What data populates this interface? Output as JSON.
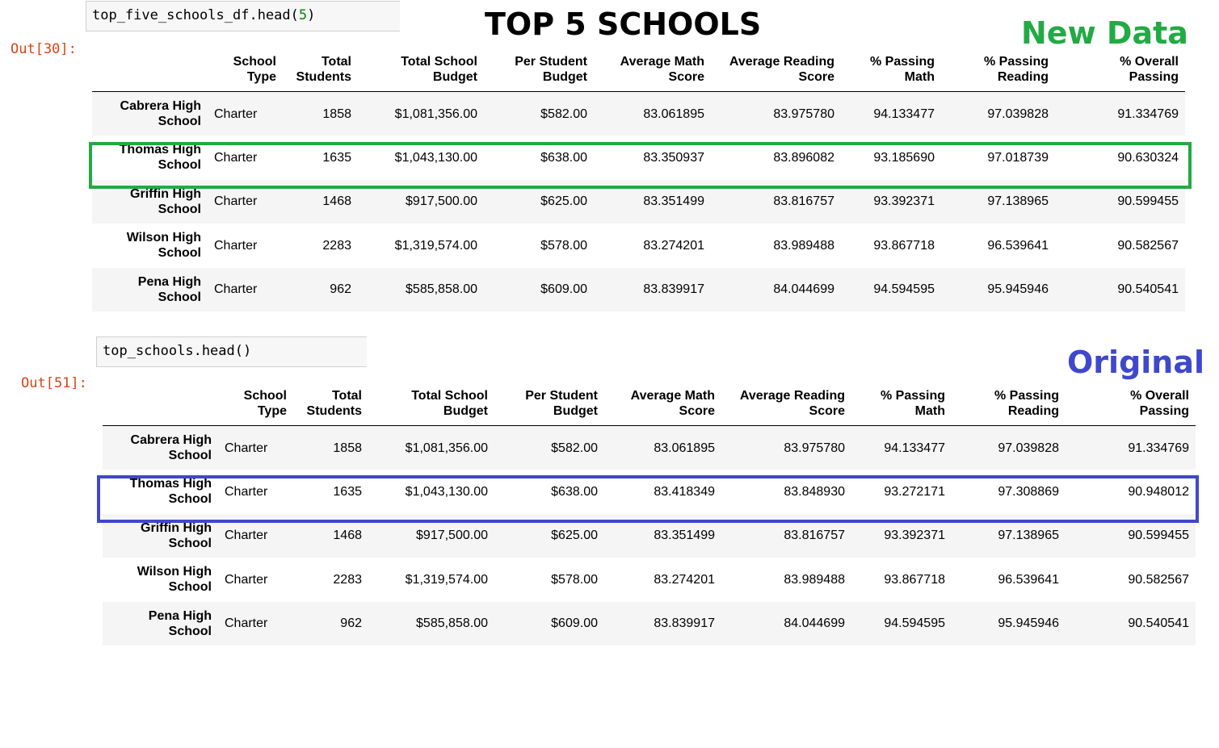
{
  "colors": {
    "new_label": "#22aa44",
    "original_label": "#3f48cc",
    "prompt": "#d84315",
    "code_number": "#008800"
  },
  "heading": "TOP 5 SCHOOLS",
  "new_data": {
    "code_prefix": "top_five_schools_df.head(",
    "code_arg": "5",
    "code_suffix": ")",
    "prompt": "Out[30]:",
    "label": "New Data",
    "highlight_row": 1,
    "header_line1": [
      "School",
      "Total",
      "Total School",
      "Per Student",
      "Average Math",
      "Average Reading",
      "% Passing",
      "% Passing",
      "% Overall"
    ],
    "header_line2": [
      "Type",
      "Students",
      "Budget",
      "Budget",
      "Score",
      "Score",
      "Math",
      "Reading",
      "Passing"
    ],
    "rows": [
      {
        "name1": "Cabrera High",
        "name2": "School",
        "cells": [
          "Charter",
          "1858",
          "$1,081,356.00",
          "$582.00",
          "83.061895",
          "83.975780",
          "94.133477",
          "97.039828",
          "91.334769"
        ]
      },
      {
        "name1": "Thomas High",
        "name2": "School",
        "cells": [
          "Charter",
          "1635",
          "$1,043,130.00",
          "$638.00",
          "83.350937",
          "83.896082",
          "93.185690",
          "97.018739",
          "90.630324"
        ]
      },
      {
        "name1": "Griffin High",
        "name2": "School",
        "cells": [
          "Charter",
          "1468",
          "$917,500.00",
          "$625.00",
          "83.351499",
          "83.816757",
          "93.392371",
          "97.138965",
          "90.599455"
        ]
      },
      {
        "name1": "Wilson High",
        "name2": "School",
        "cells": [
          "Charter",
          "2283",
          "$1,319,574.00",
          "$578.00",
          "83.274201",
          "83.989488",
          "93.867718",
          "96.539641",
          "90.582567"
        ]
      },
      {
        "name1": "Pena High",
        "name2": "School",
        "cells": [
          "Charter",
          "962",
          "$585,858.00",
          "$609.00",
          "83.839917",
          "84.044699",
          "94.594595",
          "95.945946",
          "90.540541"
        ]
      }
    ]
  },
  "original": {
    "code_prefix": "top_schools.head()",
    "code_arg": "",
    "code_suffix": "",
    "prompt": "Out[51]:",
    "label": "Original",
    "highlight_row": 1,
    "header_line1": [
      "School",
      "Total",
      "Total School",
      "Per Student",
      "Average Math",
      "Average Reading",
      "% Passing",
      "% Passing",
      "% Overall"
    ],
    "header_line2": [
      "Type",
      "Students",
      "Budget",
      "Budget",
      "Score",
      "Score",
      "Math",
      "Reading",
      "Passing"
    ],
    "rows": [
      {
        "name1": "Cabrera High",
        "name2": "School",
        "cells": [
          "Charter",
          "1858",
          "$1,081,356.00",
          "$582.00",
          "83.061895",
          "83.975780",
          "94.133477",
          "97.039828",
          "91.334769"
        ]
      },
      {
        "name1": "Thomas High",
        "name2": "School",
        "cells": [
          "Charter",
          "1635",
          "$1,043,130.00",
          "$638.00",
          "83.418349",
          "83.848930",
          "93.272171",
          "97.308869",
          "90.948012"
        ]
      },
      {
        "name1": "Griffin High",
        "name2": "School",
        "cells": [
          "Charter",
          "1468",
          "$917,500.00",
          "$625.00",
          "83.351499",
          "83.816757",
          "93.392371",
          "97.138965",
          "90.599455"
        ]
      },
      {
        "name1": "Wilson High",
        "name2": "School",
        "cells": [
          "Charter",
          "2283",
          "$1,319,574.00",
          "$578.00",
          "83.274201",
          "83.989488",
          "93.867718",
          "96.539641",
          "90.582567"
        ]
      },
      {
        "name1": "Pena High",
        "name2": "School",
        "cells": [
          "Charter",
          "962",
          "$585,858.00",
          "$609.00",
          "83.839917",
          "84.044699",
          "94.594595",
          "95.945946",
          "90.540541"
        ]
      }
    ]
  }
}
